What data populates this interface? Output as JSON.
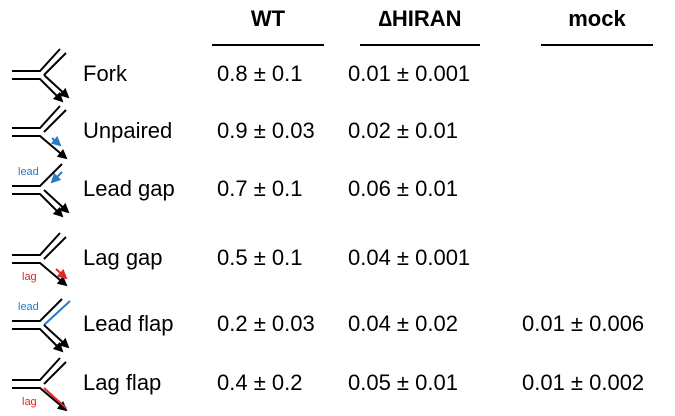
{
  "table": {
    "columns": [
      "WT",
      "∆HIRAN",
      "mock"
    ],
    "rows": [
      {
        "label": "Fork",
        "values": [
          "0.8 ± 0.1",
          "0.01 ± 0.001"
        ]
      },
      {
        "label": "Unpaired",
        "values": [
          "0.9 ± 0.03",
          "0.02 ± 0.01"
        ]
      },
      {
        "label": "Lead gap",
        "strand": "lead",
        "values": [
          "0.7 ± 0.1",
          "0.06 ± 0.01"
        ]
      },
      {
        "label": "Lag gap",
        "strand": "lag",
        "values": [
          "0.5 ± 0.1",
          "0.04 ± 0.001"
        ]
      },
      {
        "label": "Lead flap",
        "strand": "lead",
        "values": [
          "0.2 ± 0.03",
          "0.04 ± 0.02",
          "0.01 ± 0.006"
        ]
      },
      {
        "label": "Lag flap",
        "strand": "lag",
        "values": [
          "0.4 ± 0.2",
          "0.05 ± 0.01",
          "0.01 ± 0.002"
        ]
      }
    ]
  }
}
